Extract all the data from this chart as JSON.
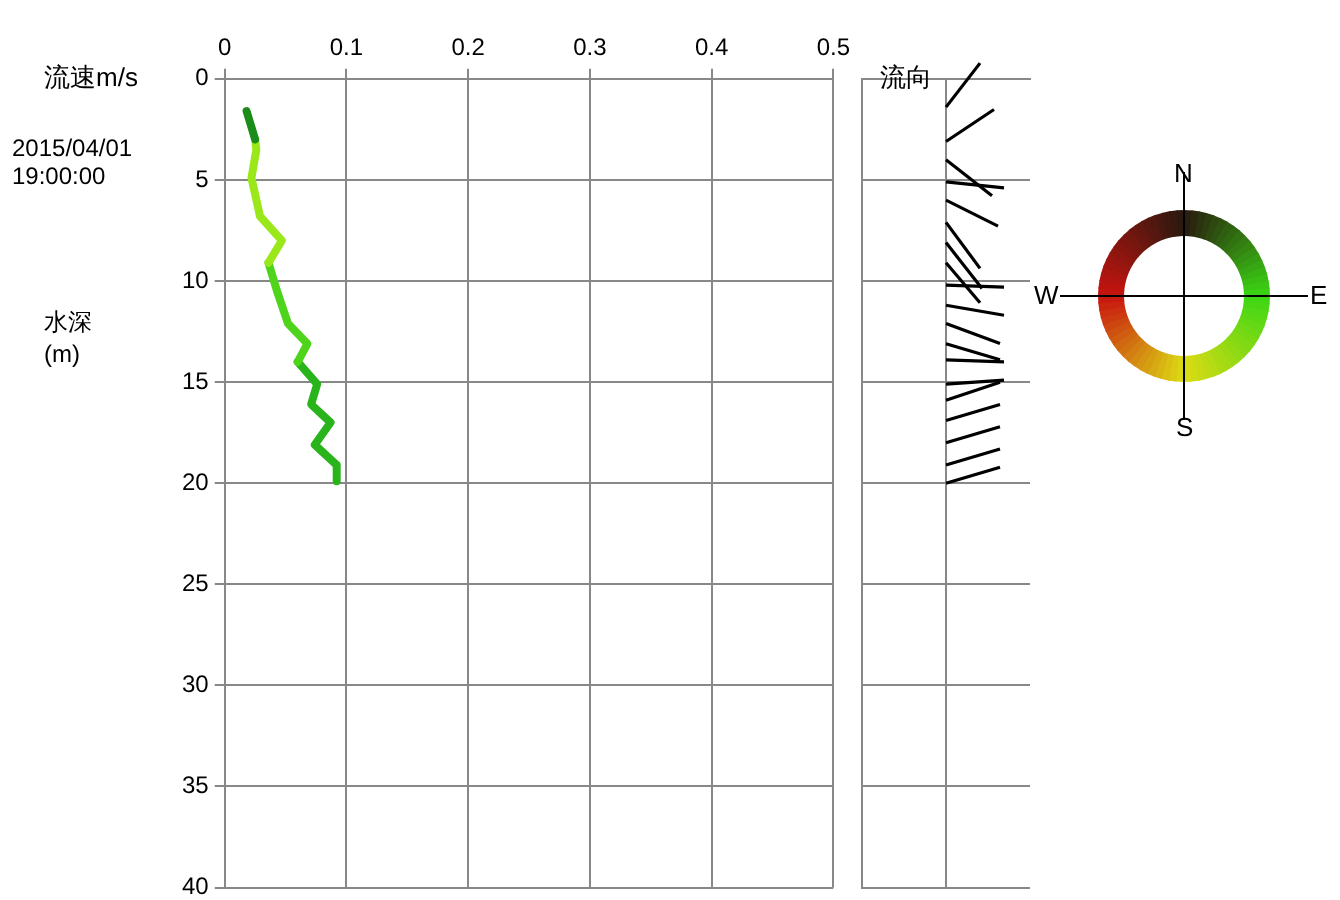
{
  "chart_data": [
    {
      "type": "line",
      "xlabel": "流速m/s",
      "ylabel": "水深\n(m)",
      "subtitle": "2015/04/01\n19:00:00",
      "xlim": [
        0,
        0.5
      ],
      "xticks": [
        0,
        0.1,
        0.2,
        0.3,
        0.4,
        0.5
      ],
      "ylim": [
        40,
        0
      ],
      "yticks": [
        0,
        5,
        10,
        15,
        20,
        25,
        30,
        35,
        40
      ],
      "grid": true,
      "legend": false,
      "series": [
        {
          "color": "#1a8c1a",
          "x": [
            0.018,
            0.025
          ],
          "values": [
            1.6,
            3.0
          ]
        },
        {
          "color": "#9be81a",
          "x": [
            0.025,
            0.026,
            0.022,
            0.029,
            0.047,
            0.036
          ],
          "values": [
            3.0,
            3.5,
            4.9,
            6.8,
            8.0,
            9.1
          ]
        },
        {
          "color": "#4ed41a",
          "x": [
            0.036,
            0.043,
            0.052,
            0.068,
            0.06
          ],
          "values": [
            9.1,
            10.5,
            12.1,
            13.1,
            14.0
          ]
        },
        {
          "color": "#28b41a",
          "x": [
            0.06,
            0.076,
            0.071,
            0.087,
            0.074,
            0.092,
            0.092
          ],
          "values": [
            14.0,
            15.1,
            16.1,
            17.0,
            18.1,
            19.1,
            19.9
          ]
        }
      ]
    },
    {
      "type": "other",
      "title": "流向",
      "annotations": [
        "N",
        "E",
        "S",
        "W"
      ]
    }
  ]
}
